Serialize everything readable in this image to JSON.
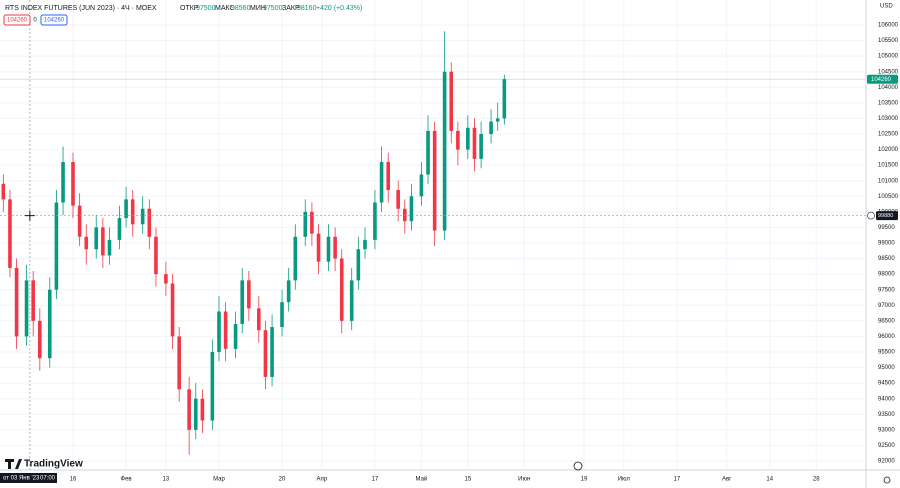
{
  "header": {
    "title": "RTS INDEX FUTURES (JUN 2023) · 4Ч · MOEX",
    "open_label": "ОТКР",
    "open": "97500",
    "high_label": "МАКС",
    "high": "98560",
    "low_label": "МИН",
    "low": "97500",
    "close_label": "ЗАКР",
    "close": "98160",
    "change": "+420 (+0.43%)",
    "sell": "104260",
    "spread": "0",
    "buy": "104260",
    "currency": "USD",
    "brand": "TradingView"
  },
  "chart_data": {
    "type": "candlestick",
    "x": [
      "2022-12-26",
      "2022-12-28",
      "2022-12-30",
      "2023-01-02",
      "2023-01-04",
      "2023-01-06",
      "2023-01-09",
      "2023-01-11",
      "2023-01-13",
      "2023-01-16",
      "2023-01-18",
      "2023-01-20",
      "2023-01-23",
      "2023-01-25",
      "2023-01-27",
      "2023-01-30",
      "2023-02-01",
      "2023-02-03",
      "2023-02-06",
      "2023-02-08",
      "2023-02-10",
      "2023-02-13",
      "2023-02-15",
      "2023-02-17",
      "2023-02-20",
      "2023-02-22",
      "2023-02-24",
      "2023-02-27",
      "2023-03-01",
      "2023-03-03",
      "2023-03-06",
      "2023-03-08",
      "2023-03-10",
      "2023-03-13",
      "2023-03-15",
      "2023-03-17",
      "2023-03-20",
      "2023-03-22",
      "2023-03-24",
      "2023-03-27",
      "2023-03-29",
      "2023-03-31",
      "2023-04-03",
      "2023-04-05",
      "2023-04-07",
      "2023-04-10",
      "2023-04-12",
      "2023-04-14",
      "2023-04-17",
      "2023-04-19",
      "2023-04-21",
      "2023-04-24",
      "2023-04-26",
      "2023-04-28",
      "2023-05-01",
      "2023-05-03",
      "2023-05-05",
      "2023-05-08",
      "2023-05-10",
      "2023-05-12",
      "2023-05-15",
      "2023-05-17",
      "2023-05-19",
      "2023-05-22",
      "2023-05-24",
      "2023-05-26"
    ],
    "open": [
      100900,
      100400,
      98200,
      96000,
      97800,
      96500,
      95300,
      97500,
      100300,
      101600,
      100200,
      99200,
      98800,
      99500,
      98600,
      99100,
      99800,
      100400,
      99600,
      100100,
      99200,
      98000,
      97700,
      96000,
      94300,
      93000,
      94000,
      93300,
      95500,
      96800,
      95600,
      96400,
      97800,
      96900,
      96200,
      94700,
      96300,
      97100,
      97800,
      99200,
      100000,
      99300,
      98400,
      99200,
      98500,
      96500,
      97800,
      98800,
      99100,
      100300,
      101600,
      100700,
      100100,
      99700,
      100500,
      101200,
      102600,
      99400,
      104500,
      102600,
      102000,
      102700,
      101700,
      102500,
      102900,
      103000
    ],
    "high": [
      101200,
      100700,
      98500,
      98300,
      98100,
      96900,
      97900,
      100700,
      102100,
      101900,
      100600,
      99600,
      99900,
      99800,
      99500,
      100200,
      100800,
      100700,
      100500,
      100400,
      99500,
      98400,
      98000,
      96300,
      94700,
      94500,
      94300,
      95900,
      97300,
      97100,
      96800,
      98200,
      98100,
      97300,
      96500,
      96700,
      97500,
      98200,
      99600,
      100400,
      100300,
      99600,
      99600,
      99500,
      98800,
      98200,
      99200,
      99500,
      100700,
      102100,
      101900,
      101000,
      100400,
      100900,
      101600,
      103100,
      102900,
      105800,
      104800,
      102900,
      103100,
      103000,
      102900,
      103300,
      103500,
      104400
    ],
    "low": [
      100000,
      97900,
      95600,
      95700,
      96000,
      94900,
      95000,
      97200,
      99900,
      99800,
      98900,
      98300,
      98500,
      98200,
      98300,
      98800,
      99500,
      99200,
      99300,
      98800,
      97600,
      97300,
      95600,
      93900,
      92200,
      92700,
      92900,
      93000,
      95200,
      95200,
      95300,
      96100,
      96500,
      95800,
      94300,
      94400,
      96000,
      96800,
      97500,
      98900,
      98900,
      98000,
      98100,
      98100,
      96100,
      96200,
      97500,
      98500,
      98800,
      100000,
      100300,
      99700,
      99300,
      99400,
      100200,
      100900,
      98900,
      99100,
      102200,
      101500,
      101700,
      101300,
      101400,
      102200,
      102600,
      102800
    ],
    "close": [
      100400,
      98200,
      96000,
      97800,
      96500,
      95300,
      97500,
      100300,
      101600,
      100200,
      99200,
      98800,
      99500,
      98600,
      99100,
      99800,
      100400,
      99600,
      100100,
      99200,
      98000,
      97700,
      96000,
      94300,
      93000,
      94000,
      93300,
      95500,
      96800,
      95600,
      96400,
      97800,
      96900,
      96200,
      94700,
      96300,
      97100,
      97800,
      99200,
      100000,
      99300,
      98400,
      99200,
      98500,
      96500,
      97800,
      98800,
      99100,
      100300,
      101600,
      100700,
      100100,
      99700,
      100500,
      101200,
      102600,
      99400,
      104500,
      102600,
      102000,
      102700,
      101700,
      102500,
      102900,
      103000,
      104260
    ],
    "up_color": "#089981",
    "down_color": "#f23645",
    "xlim": [
      "2022-12-25",
      "2023-09-12"
    ],
    "xticks": [
      {
        "value": "2023-01-16",
        "label": "16"
      },
      {
        "value": "2023-02-01",
        "label": "Фев"
      },
      {
        "value": "2023-02-13",
        "label": "13"
      },
      {
        "value": "2023-03-01",
        "label": "Мар"
      },
      {
        "value": "2023-03-20",
        "label": "20"
      },
      {
        "value": "2023-04-01",
        "label": "Апр"
      },
      {
        "value": "2023-04-17",
        "label": "17"
      },
      {
        "value": "2023-05-01",
        "label": "Май"
      },
      {
        "value": "2023-05-15",
        "label": "15"
      },
      {
        "value": "2023-06-01",
        "label": "Июн"
      },
      {
        "value": "2023-06-19",
        "label": "19"
      },
      {
        "value": "2023-07-01",
        "label": "Июл"
      },
      {
        "value": "2023-07-17",
        "label": "17"
      },
      {
        "value": "2023-08-01",
        "label": "Авг"
      },
      {
        "value": "2023-08-14",
        "label": "14"
      },
      {
        "value": "2023-08-28",
        "label": "28"
      }
    ],
    "ylim": [
      91710,
      106803
    ],
    "yticks": [
      92000,
      92500,
      93000,
      93500,
      94000,
      94500,
      95000,
      95500,
      96000,
      96500,
      97000,
      97500,
      98000,
      98500,
      99000,
      99500,
      100000,
      100500,
      101000,
      101500,
      102000,
      102500,
      103000,
      103500,
      104000,
      104500,
      105000,
      105500,
      106000
    ],
    "grid": true,
    "last_price": 104260,
    "crosshair": {
      "y": 99880,
      "x": "2023-01-03",
      "x_label": "от 03 Янв '23",
      "time_label": "07:00"
    }
  }
}
